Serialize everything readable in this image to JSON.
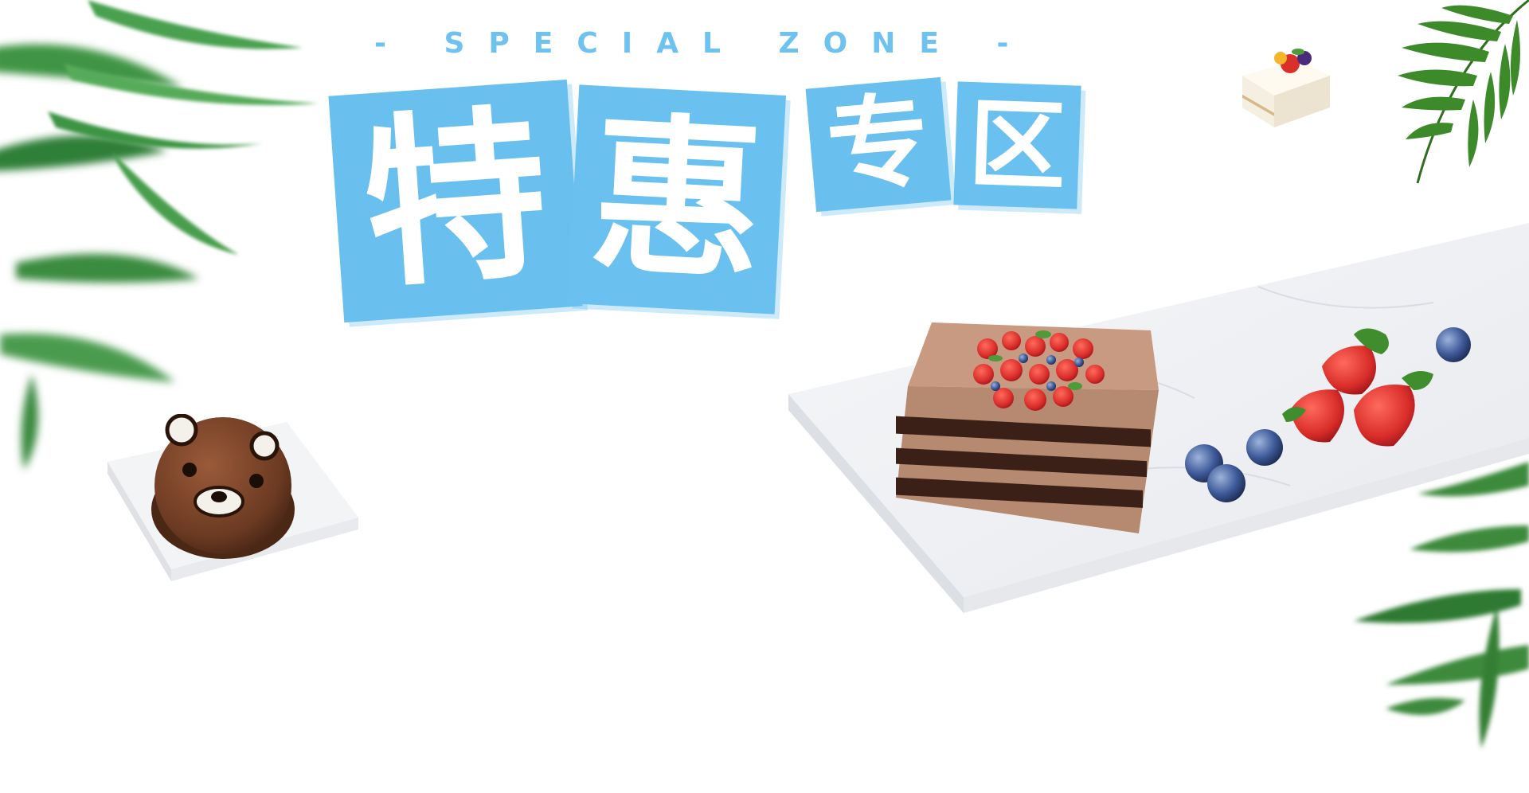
{
  "banner": {
    "subtitle": "- SPECIAL ZONE -",
    "title_chars": [
      "特",
      "惠",
      "专",
      "区"
    ]
  },
  "colors": {
    "accent": "#6ac1f0",
    "subtitle": "#6ec2ef",
    "marble": "#f2f3f5",
    "leaf": "#3e8f3a"
  },
  "decorations": {
    "icons": [
      "leaf-cluster-icon",
      "bear-cake-icon",
      "layer-cake-icon",
      "strawberry-icon",
      "blueberry-icon",
      "slice-cake-icon"
    ]
  }
}
